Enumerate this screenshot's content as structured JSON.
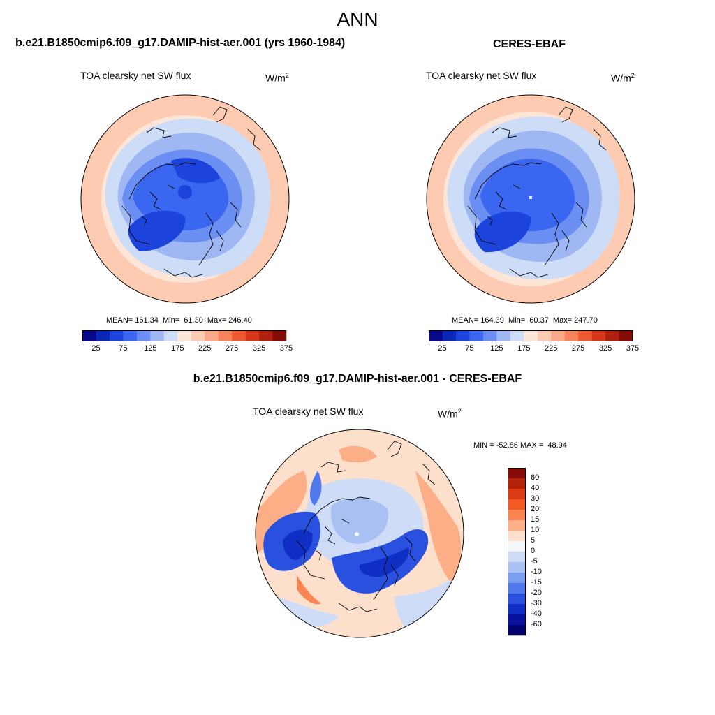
{
  "season": "ANN",
  "panels": [
    {
      "id": "model",
      "case_title": "b.e21.B1850cmip6.f09_g17.DAMIP-hist-aer.001 (yrs 1960-1984)",
      "variable": "TOA clearsky net SW flux",
      "units_base": "W/m",
      "units_exp": "2",
      "stats": "MEAN= 161.34  Min=  61.30  Max= 246.40",
      "colorbar_ticks": [
        "25",
        "75",
        "125",
        "175",
        "225",
        "275",
        "325",
        "375"
      ]
    },
    {
      "id": "obs",
      "case_title": "CERES-EBAF",
      "variable": "TOA clearsky net SW flux",
      "units_base": "W/m",
      "units_exp": "2",
      "stats": "MEAN= 164.39  Min=  60.37  Max= 247.70",
      "colorbar_ticks": [
        "25",
        "75",
        "125",
        "175",
        "225",
        "275",
        "325",
        "375"
      ]
    },
    {
      "id": "diff",
      "case_title": "b.e21.B1850cmip6.f09_g17.DAMIP-hist-aer.001 - CERES-EBAF",
      "variable": "TOA clearsky net SW flux",
      "units_base": "W/m",
      "units_exp": "2",
      "stats": "MIN = -52.86 MAX =  48.94",
      "colorbar_ticks": [
        "60",
        "40",
        "30",
        "20",
        "15",
        "10",
        "5",
        "0",
        "-5",
        "-10",
        "-15",
        "-20",
        "-30",
        "-40",
        "-60"
      ]
    }
  ],
  "colors": {
    "abs_scale": [
      "#08088c",
      "#0b27b8",
      "#1c44dd",
      "#3a66f0",
      "#6a8ef2",
      "#9fb7f3",
      "#cdddf8",
      "#fde6d8",
      "#fccbb2",
      "#fba987",
      "#f8845c",
      "#f05a33",
      "#d8361a",
      "#b0200e",
      "#870c06"
    ],
    "diff_scale": [
      "#870c06",
      "#b42109",
      "#dc3a14",
      "#f45a24",
      "#fb8550",
      "#fcae86",
      "#fde0cc",
      "#f4f6fc",
      "#cfdcf8",
      "#a9c0f3",
      "#7b9ef0",
      "#4f78ea",
      "#2a50e0",
      "#0f2fc4",
      "#08129c",
      "#040270"
    ],
    "coastline": "#000000"
  }
}
